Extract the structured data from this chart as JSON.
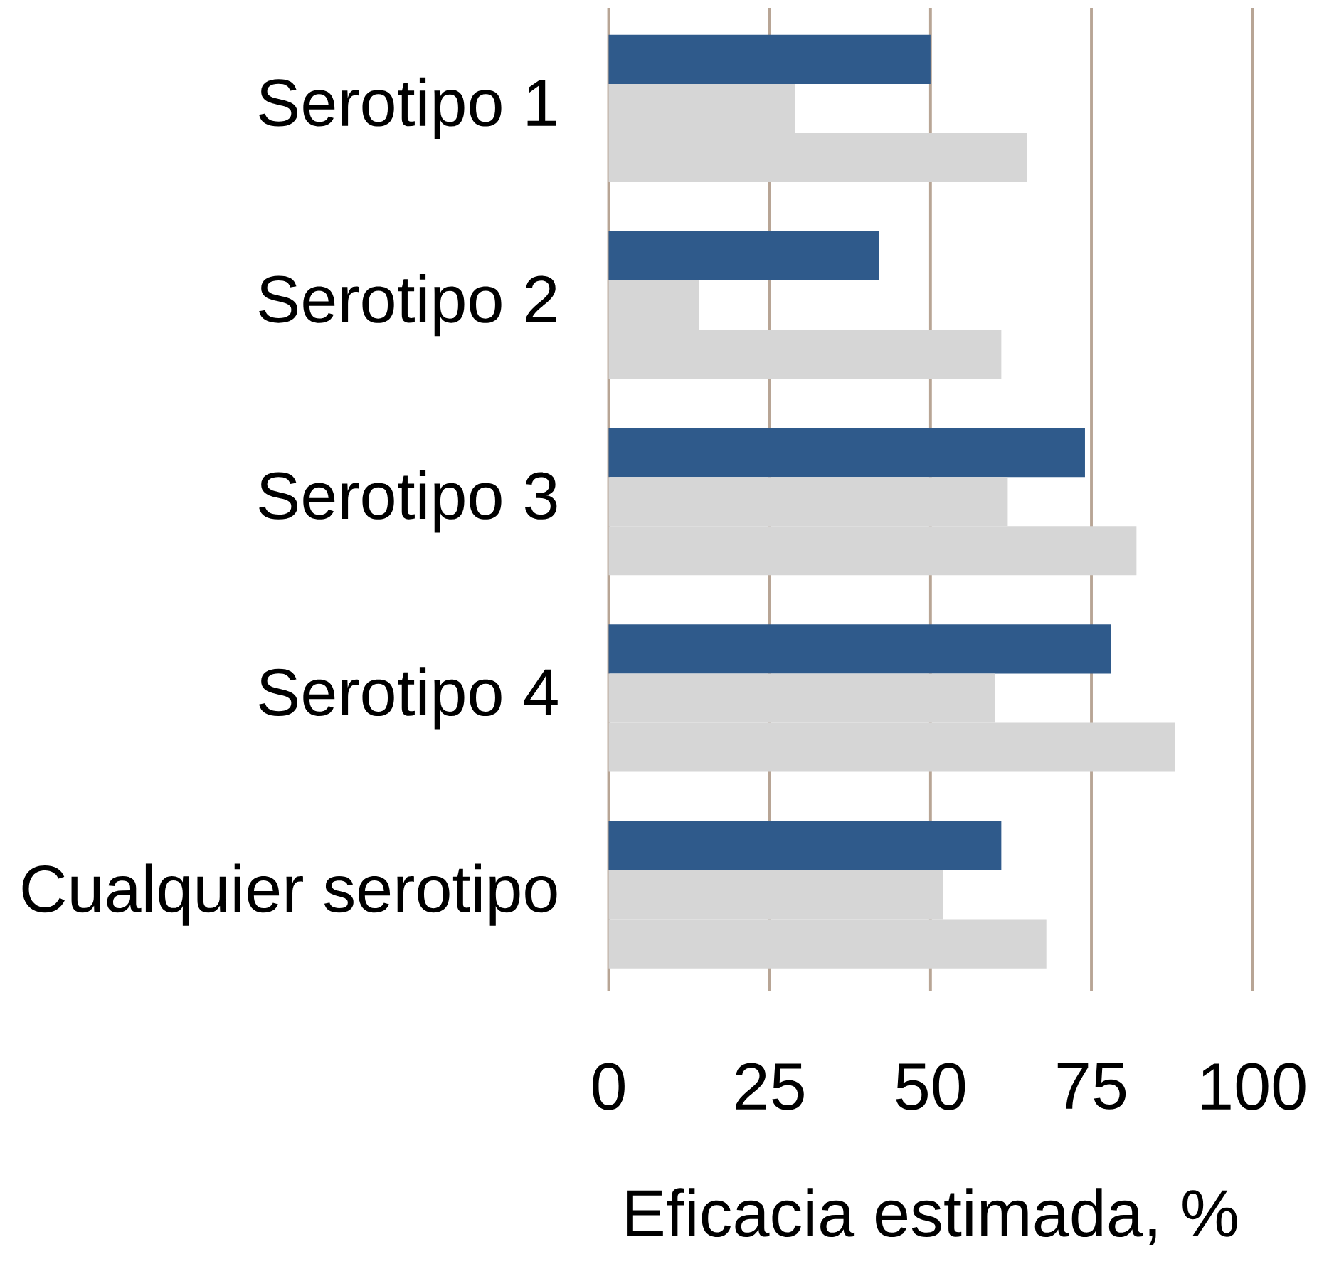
{
  "chart_data": {
    "type": "bar",
    "orientation": "horizontal",
    "categories": [
      "Serotipo 1",
      "Serotipo 2",
      "Serotipo 3",
      "Serotipo 4",
      "Cualquier serotipo"
    ],
    "series": [
      {
        "color": "#2f5a8b",
        "values": [
          50,
          42,
          74,
          78,
          61
        ]
      },
      {
        "color": "#d6d6d6",
        "values": [
          29,
          14,
          62,
          60,
          52
        ]
      },
      {
        "color": "#d6d6d6",
        "values": [
          65,
          61,
          82,
          88,
          68
        ]
      }
    ],
    "xlim": [
      0,
      100
    ],
    "xticks": [
      0,
      25,
      50,
      75,
      100
    ],
    "xlabel": "Eficacia estimada, %",
    "grid": "x"
  }
}
